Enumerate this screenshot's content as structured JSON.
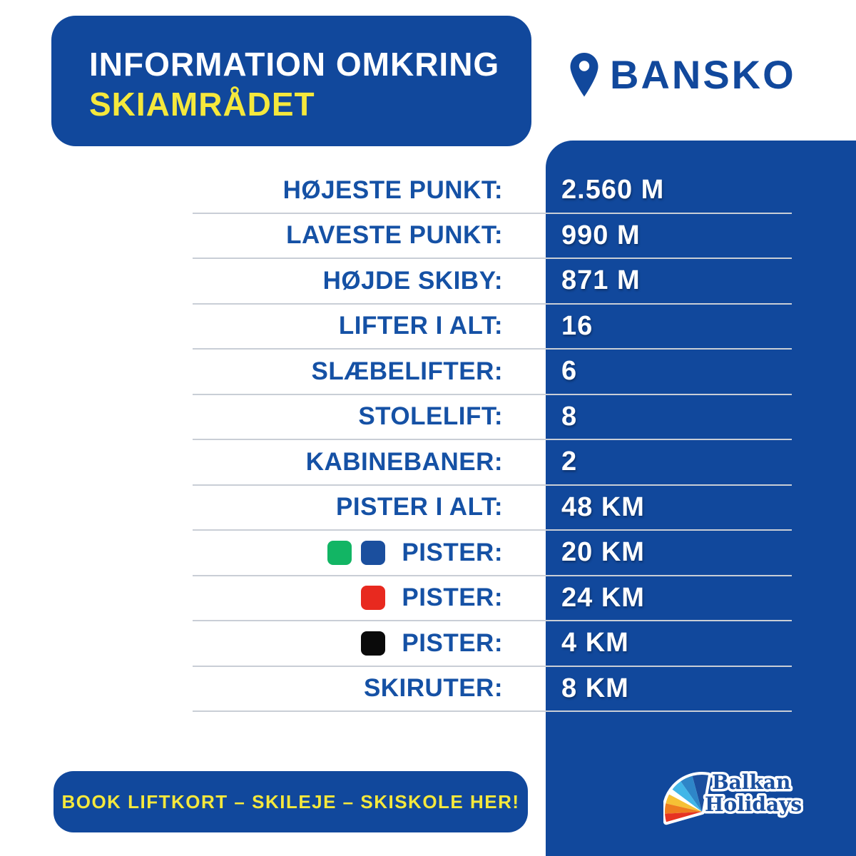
{
  "header": {
    "title_line1": "INFORMATION OMKRING",
    "title_line2": "SKIAMRÅDET"
  },
  "location": {
    "name": "BANSKO"
  },
  "table": {
    "rows": [
      {
        "label": "HØJESTE PUNKT:",
        "value": "2.560 M",
        "swatches": []
      },
      {
        "label": "LAVESTE PUNKT:",
        "value": "990 M",
        "swatches": []
      },
      {
        "label": "HØJDE SKIBY:",
        "value": "871 M",
        "swatches": []
      },
      {
        "label": "LIFTER I ALT:",
        "value": "16",
        "swatches": []
      },
      {
        "label": "SLÆBELIFTER:",
        "value": "6",
        "swatches": []
      },
      {
        "label": "STOLELIFT:",
        "value": "8",
        "swatches": []
      },
      {
        "label": "KABINEBANER:",
        "value": "2",
        "swatches": []
      },
      {
        "label": "PISTER I ALT:",
        "value": "48 KM",
        "swatches": []
      },
      {
        "label": "PISTER:",
        "value": "20 KM",
        "swatches": [
          {
            "name": "green-piste",
            "color": "#12b564"
          },
          {
            "name": "blue-piste",
            "color": "#1b4f9e"
          }
        ]
      },
      {
        "label": "PISTER:",
        "value": "24 KM",
        "swatches": [
          {
            "name": "red-piste",
            "color": "#e8291f"
          }
        ]
      },
      {
        "label": "PISTER:",
        "value": "4 KM",
        "swatches": [
          {
            "name": "black-piste",
            "color": "#0a0a0a"
          }
        ]
      },
      {
        "label": "SKIRUTER:",
        "value": "8 KM",
        "swatches": []
      }
    ]
  },
  "cta": {
    "label": "BOOK LIFTKORT – SKILEJE – SKISKOLE HER!"
  },
  "logo": {
    "line1": "Balkan",
    "line2": "Holidays"
  },
  "colors": {
    "primary_blue": "#11489c",
    "label_blue": "#1551a5",
    "accent_yellow": "#f5e83c",
    "divider_gray": "#c9ced6",
    "logo_light_blue": "#41b6e8",
    "logo_mid_blue": "#2e86c8",
    "logo_yellow": "#f6c135",
    "logo_orange": "#ee7c1f",
    "logo_red": "#e63322"
  }
}
